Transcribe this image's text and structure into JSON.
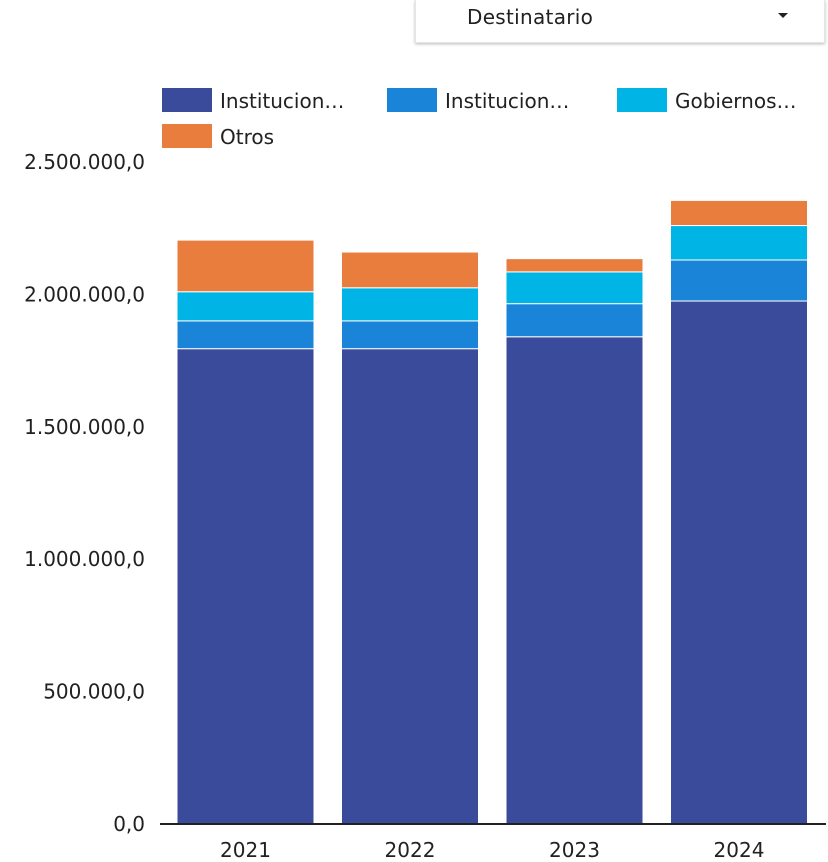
{
  "filter": {
    "selected": "Destinatario",
    "arrow_icon": "caret-down-icon"
  },
  "chart_data": {
    "type": "bar",
    "stacked": true,
    "categories": [
      "2021",
      "2022",
      "2023",
      "2024"
    ],
    "series": [
      {
        "name": "Institucion…",
        "color": "#3a4b9c",
        "values": [
          1795000,
          1795000,
          1840000,
          1975000
        ]
      },
      {
        "name": "Institucion…",
        "color": "#1a84d8",
        "values": [
          105000,
          105000,
          125000,
          155000
        ]
      },
      {
        "name": "Gobiernos…",
        "color": "#00b4e6",
        "values": [
          110000,
          125000,
          120000,
          130000
        ]
      },
      {
        "name": "Otros",
        "color": "#e87d3e",
        "values": [
          195000,
          135000,
          50000,
          95000
        ]
      }
    ],
    "y_ticks": [
      "0,0",
      "500.000,0",
      "1.000.000,0",
      "1.500.000,0",
      "2.000.000,0",
      "2.500.000,0"
    ],
    "ylim": [
      0,
      2500000
    ],
    "legend_position": "top",
    "grid": false
  }
}
